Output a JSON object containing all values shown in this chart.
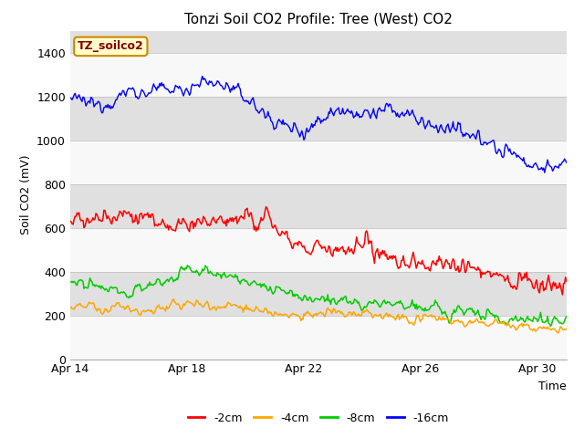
{
  "title": "Tonzi Soil CO2 Profile: Tree (West) CO2",
  "xlabel": "Time",
  "ylabel": "Soil CO2 (mV)",
  "ylim": [
    0,
    1500
  ],
  "yticks": [
    0,
    200,
    400,
    600,
    800,
    1000,
    1200,
    1400
  ],
  "legend_labels": [
    "-2cm",
    "-4cm",
    "-8cm",
    "-16cm"
  ],
  "legend_colors": [
    "#ff0000",
    "#ffa500",
    "#00cc00",
    "#0000ff"
  ],
  "tag_text": "TZ_soilco2",
  "tag_bg": "#ffffcc",
  "tag_border": "#cc8800",
  "tag_text_color": "#880000",
  "background_color": "#ffffff",
  "plot_bg_color": "#e8e8e8",
  "n_points": 500,
  "xstart": 0,
  "xend": 17,
  "xtick_positions": [
    0,
    4,
    8,
    12,
    16
  ],
  "xtick_labels": [
    "Apr 14",
    "Apr 18",
    "Apr 22",
    "Apr 26",
    "Apr 30"
  ]
}
